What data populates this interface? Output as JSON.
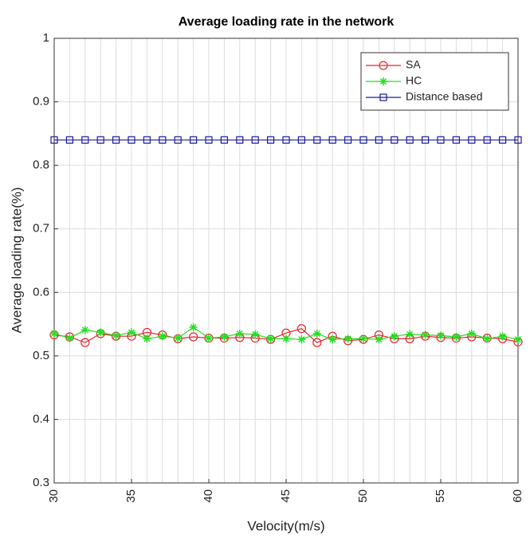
{
  "chart_data": {
    "type": "line",
    "title": "Average loading rate in the network",
    "x_label": "Velocity(m/s)",
    "y_label": "Average loading rate(%)",
    "x": [
      30,
      31,
      32,
      33,
      34,
      35,
      36,
      37,
      38,
      39,
      40,
      41,
      42,
      43,
      44,
      45,
      46,
      47,
      48,
      49,
      50,
      51,
      52,
      53,
      54,
      55,
      56,
      57,
      58,
      59,
      60
    ],
    "series": [
      {
        "name": "SA",
        "color": "#e8242c",
        "marker": "circle",
        "values": [
          0.533,
          0.53,
          0.521,
          0.535,
          0.531,
          0.531,
          0.537,
          0.533,
          0.527,
          0.53,
          0.528,
          0.528,
          0.529,
          0.528,
          0.526,
          0.536,
          0.543,
          0.521,
          0.531,
          0.524,
          0.526,
          0.533,
          0.527,
          0.527,
          0.531,
          0.529,
          0.528,
          0.53,
          0.528,
          0.527,
          0.522
        ]
      },
      {
        "name": "HC",
        "color": "#22e022",
        "marker": "asterisk",
        "values": [
          0.535,
          0.528,
          0.541,
          0.537,
          0.532,
          0.537,
          0.527,
          0.531,
          0.528,
          0.545,
          0.528,
          0.53,
          0.535,
          0.534,
          0.527,
          0.527,
          0.526,
          0.535,
          0.526,
          0.527,
          0.527,
          0.526,
          0.531,
          0.534,
          0.533,
          0.532,
          0.53,
          0.535,
          0.527,
          0.531,
          0.526
        ]
      },
      {
        "name": "Distance based",
        "color": "#1a1aa0",
        "marker": "square",
        "values": [
          0.84,
          0.84,
          0.84,
          0.84,
          0.84,
          0.84,
          0.84,
          0.84,
          0.84,
          0.84,
          0.84,
          0.84,
          0.84,
          0.84,
          0.84,
          0.84,
          0.84,
          0.84,
          0.84,
          0.84,
          0.84,
          0.84,
          0.84,
          0.84,
          0.84,
          0.84,
          0.84,
          0.84,
          0.84,
          0.84,
          0.84
        ]
      }
    ],
    "xlim": [
      30,
      60
    ],
    "xticks": [
      30,
      35,
      40,
      45,
      50,
      55,
      60
    ],
    "x_minor_grid": [
      31,
      32,
      33,
      34,
      36,
      37,
      38,
      39,
      41,
      42,
      43,
      44,
      46,
      47,
      48,
      49,
      51,
      52,
      53,
      54,
      56,
      57,
      58,
      59
    ],
    "ylim": [
      0.3,
      1
    ],
    "yticks": [
      0.3,
      0.4,
      0.5,
      0.6,
      0.7,
      0.8,
      0.9,
      1
    ],
    "grid": true,
    "legend_position": "upper-right"
  }
}
